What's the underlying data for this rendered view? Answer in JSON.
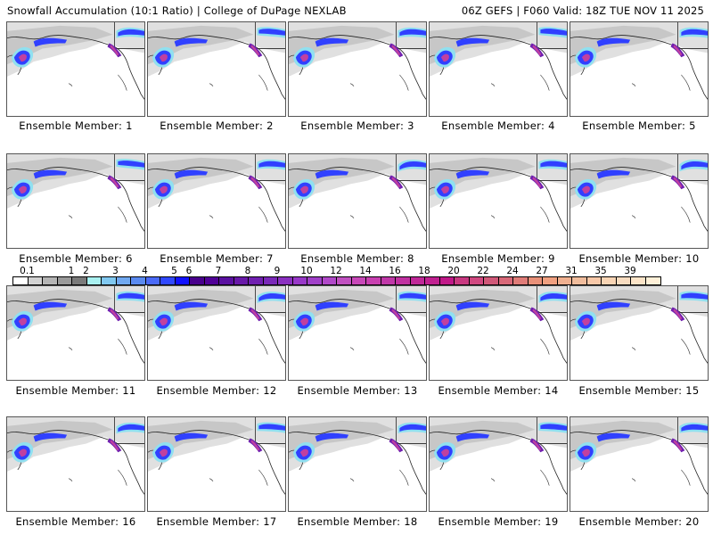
{
  "header": {
    "left_title": "Snowfall Accumulation (10:1 Ratio) | College of DuPage NEXLAB",
    "right_title": "06Z GEFS | F060 Valid: 18Z TUE NOV 11 2025"
  },
  "panels": [
    {
      "label": "Ensemble Member: 1"
    },
    {
      "label": "Ensemble Member: 2"
    },
    {
      "label": "Ensemble Member: 3"
    },
    {
      "label": "Ensemble Member: 4"
    },
    {
      "label": "Ensemble Member: 5"
    },
    {
      "label": "Ensemble Member: 6"
    },
    {
      "label": "Ensemble Member: 7"
    },
    {
      "label": "Ensemble Member: 8"
    },
    {
      "label": "Ensemble Member: 9"
    },
    {
      "label": "Ensemble Member: 10"
    },
    {
      "label": "Ensemble Member: 11"
    },
    {
      "label": "Ensemble Member: 12"
    },
    {
      "label": "Ensemble Member: 13"
    },
    {
      "label": "Ensemble Member: 14"
    },
    {
      "label": "Ensemble Member: 15"
    },
    {
      "label": "Ensemble Member: 16"
    },
    {
      "label": "Ensemble Member: 17"
    },
    {
      "label": "Ensemble Member: 18"
    },
    {
      "label": "Ensemble Member: 19"
    },
    {
      "label": "Ensemble Member: 20"
    }
  ],
  "colorbar": {
    "tick_labels": [
      "0.1",
      "1",
      "2",
      "3",
      "4",
      "5",
      "6",
      "7",
      "8",
      "9",
      "10",
      "12",
      "14",
      "16",
      "18",
      "20",
      "22",
      "24",
      "27",
      "31",
      "35",
      "39"
    ],
    "colors": [
      "#ffffff",
      "#d2d2d2",
      "#b4b4b4",
      "#9a9a9a",
      "#7a7a7a",
      "#a8f0f0",
      "#80c8f0",
      "#70a8f0",
      "#5a8af0",
      "#4a6af8",
      "#3048ff",
      "#1010ff",
      "#48008c",
      "#500096",
      "#5a10a0",
      "#6818a8",
      "#7020b0",
      "#7a28b8",
      "#8a30c0",
      "#9838c8",
      "#a040c8",
      "#b048c8",
      "#c050c0",
      "#c848b8",
      "#c840b0",
      "#c038a8",
      "#c030a0",
      "#c02898",
      "#c02090",
      "#c01888",
      "#c83880",
      "#d04880",
      "#d05878",
      "#d86878",
      "#e07c78",
      "#e89078",
      "#f0a080",
      "#f0b090",
      "#f0bc9c",
      "#f8c8a8",
      "#f8d4b4",
      "#f8dcc0",
      "#fce4c8",
      "#fff0d8"
    ]
  },
  "map_colors": {
    "light_gray": "#e0e0e0",
    "mid_gray": "#c0c0c0",
    "cyan": "#90e0f0",
    "blue": "#3040ff",
    "purple": "#7020b0",
    "magenta": "#c040a0"
  }
}
